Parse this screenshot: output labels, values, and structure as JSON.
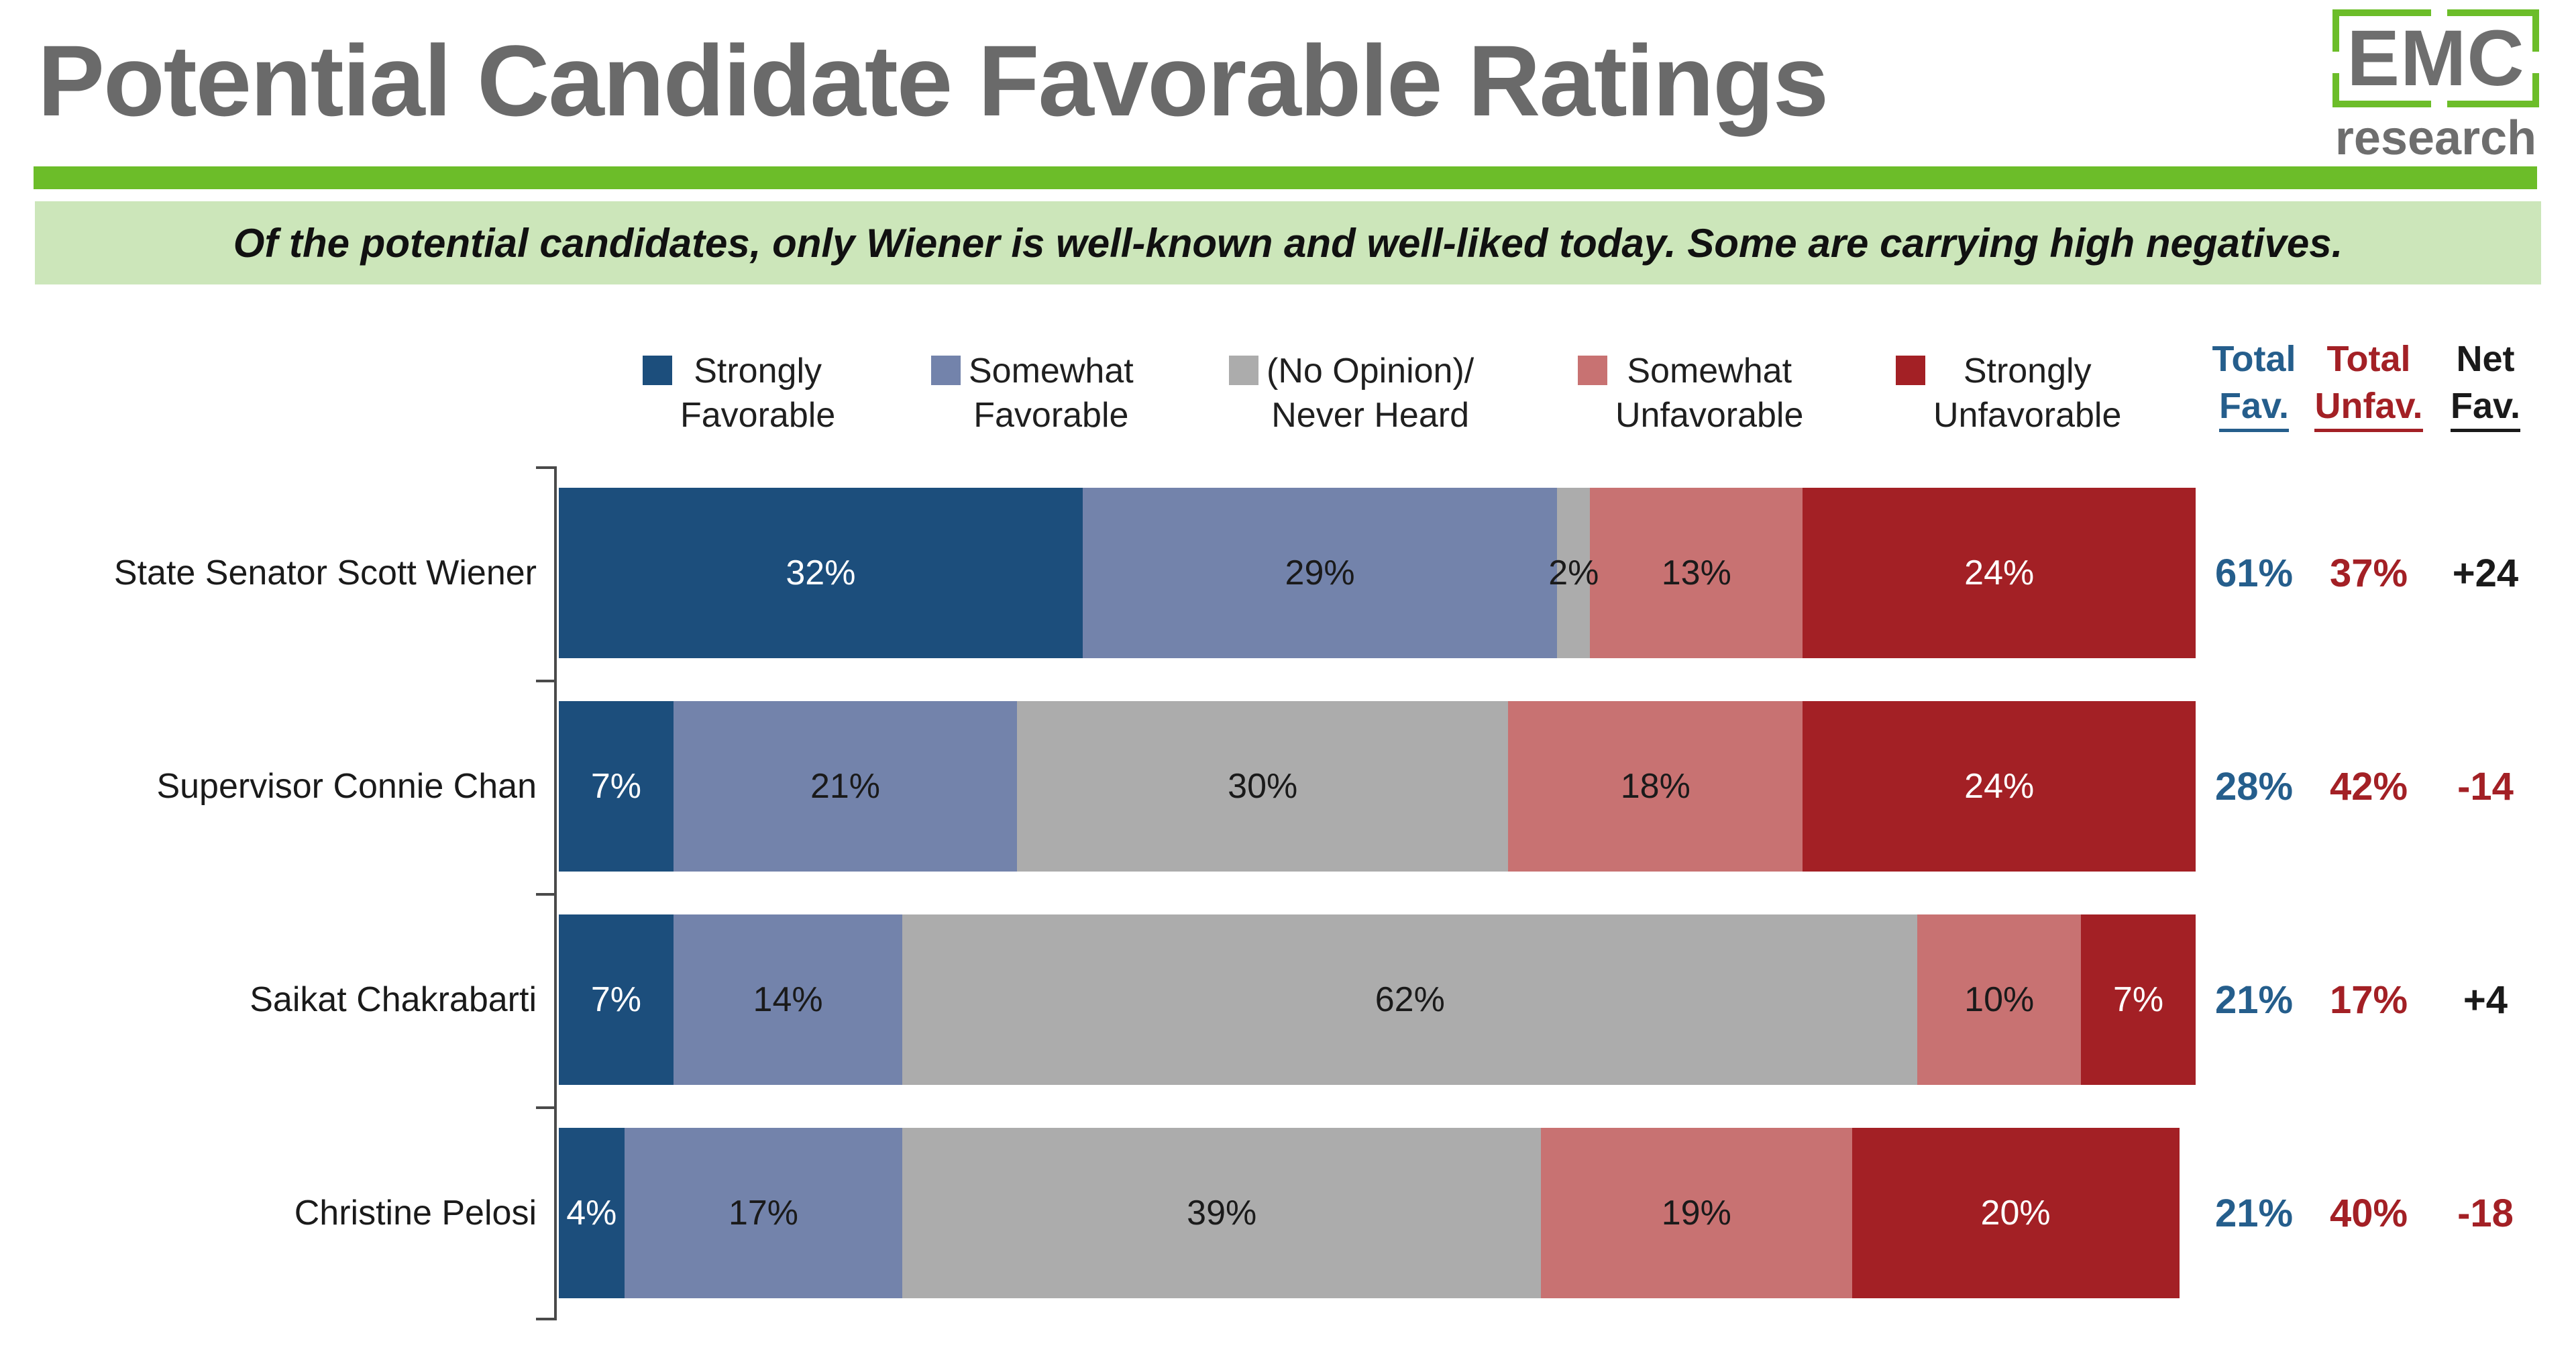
{
  "slide": {
    "title": "Potential Candidate Favorable Ratings",
    "subtitle": "Of the potential candidates, only Wiener is well-known and well-liked today. Some are carrying high negatives.",
    "logo": {
      "text": "EMC",
      "subtext": "research"
    }
  },
  "colors": {
    "accent_green": "#6CBD29",
    "banner_bg": "#CCE6BA",
    "title_gray": "#6A6A6A",
    "logo_gray": "#6E6E6E",
    "axis": "#4A4A4A",
    "total_fav_text": "#255E8C",
    "total_unfav_text": "#A32025",
    "net_positive_text": "#1A1A1A",
    "net_negative_text": "#A32025"
  },
  "chart_data": {
    "type": "bar",
    "stacked": true,
    "orientation": "horizontal",
    "unit": "%",
    "xlim": [
      0,
      100
    ],
    "legend_position": "top",
    "grid": false,
    "legend": [
      {
        "name": "Strongly Favorable",
        "label_lines": [
          "Strongly",
          "Favorable"
        ],
        "color": "#1C4E7C",
        "label_color": "#FFFFFF"
      },
      {
        "name": "Somewhat Favorable",
        "label_lines": [
          "Somewhat",
          "Favorable"
        ],
        "color": "#7383AB",
        "label_color": "#1A1A1A"
      },
      {
        "name": "(No Opinion)/Never Heard",
        "label_lines": [
          "(No Opinion)/",
          "Never Heard"
        ],
        "color": "#ACACAC",
        "label_color": "#1A1A1A"
      },
      {
        "name": "Somewhat Unfavorable",
        "label_lines": [
          "Somewhat",
          "Unfavorable"
        ],
        "color": "#C87272",
        "label_color": "#1A1A1A"
      },
      {
        "name": "Strongly Unfavorable",
        "label_lines": [
          "Strongly",
          "Unfavorable"
        ],
        "color": "#A32025",
        "label_color": "#FFFFFF"
      }
    ],
    "summary_columns": [
      {
        "key": "total_fav",
        "label_lines": [
          "Total",
          "Fav."
        ],
        "color": "#255E8C"
      },
      {
        "key": "total_unfav",
        "label_lines": [
          "Total",
          "Unfav."
        ],
        "color": "#A32025"
      },
      {
        "key": "net_fav",
        "label_lines": [
          "Net",
          "Fav."
        ],
        "color": "#1A1A1A"
      }
    ],
    "rows": [
      {
        "category": "State Senator Scott Wiener",
        "values": [
          32,
          29,
          2,
          13,
          24
        ],
        "labels": [
          "32%",
          "29%",
          "2%",
          "13%",
          "24%"
        ],
        "total_fav": "61%",
        "total_unfav": "37%",
        "net_fav": "+24",
        "net_fav_negative": false
      },
      {
        "category": "Supervisor Connie Chan",
        "values": [
          7,
          21,
          30,
          18,
          24
        ],
        "labels": [
          "7%",
          "21%",
          "30%",
          "18%",
          "24%"
        ],
        "total_fav": "28%",
        "total_unfav": "42%",
        "net_fav": "-14",
        "net_fav_negative": true
      },
      {
        "category": "Saikat Chakrabarti",
        "values": [
          7,
          14,
          62,
          10,
          7
        ],
        "labels": [
          "7%",
          "14%",
          "62%",
          "10%",
          "7%"
        ],
        "total_fav": "21%",
        "total_unfav": "17%",
        "net_fav": "+4",
        "net_fav_negative": false
      },
      {
        "category": "Christine Pelosi",
        "values": [
          4,
          17,
          39,
          19,
          20
        ],
        "labels": [
          "4%",
          "17%",
          "39%",
          "19%",
          "20%"
        ],
        "total_fav": "21%",
        "total_unfav": "40%",
        "net_fav": "-18",
        "net_fav_negative": true
      }
    ]
  }
}
